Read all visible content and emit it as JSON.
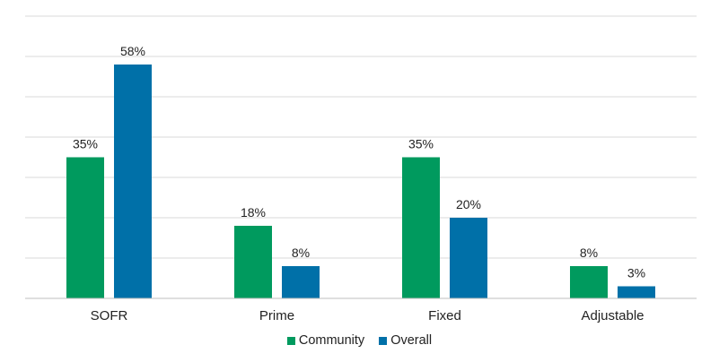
{
  "chart_data": {
    "type": "bar",
    "categories": [
      "SOFR",
      "Prime",
      "Fixed",
      "Adjustable"
    ],
    "series": [
      {
        "name": "Community",
        "values": [
          35,
          18,
          35,
          8
        ],
        "labels": [
          "35%",
          "18%",
          "35%",
          "8%"
        ],
        "color": "#009a5e"
      },
      {
        "name": "Overall",
        "values": [
          58,
          8,
          20,
          3
        ],
        "labels": [
          "58%",
          "8%",
          "20%",
          "3%"
        ],
        "color": "#0070a8"
      }
    ],
    "ylim": [
      0,
      70
    ],
    "grid": true,
    "legend_position": "bottom"
  }
}
